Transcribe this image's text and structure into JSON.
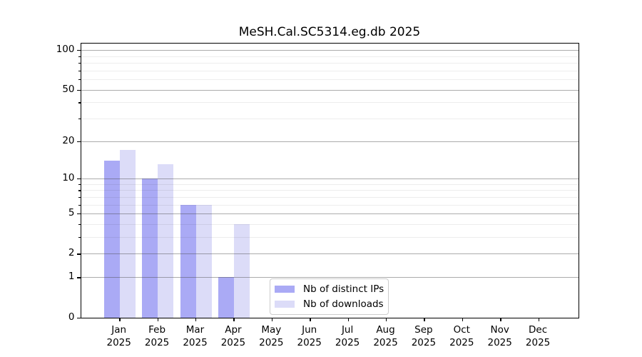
{
  "chart_data": {
    "type": "bar",
    "title": "MeSH.Cal.SC5314.eg.db 2025",
    "year_label": "2025",
    "categories": [
      "Jan",
      "Feb",
      "Mar",
      "Apr",
      "May",
      "Jun",
      "Jul",
      "Aug",
      "Sep",
      "Oct",
      "Nov",
      "Dec"
    ],
    "series": [
      {
        "name": "Nb of distinct IPs",
        "color": "#aaaaf5",
        "values": [
          14,
          10,
          6,
          1,
          0,
          0,
          0,
          0,
          0,
          0,
          0,
          0
        ]
      },
      {
        "name": "Nb of downloads",
        "color": "#dcdcf8",
        "values": [
          17,
          13,
          6,
          4,
          0,
          0,
          0,
          0,
          0,
          0,
          0,
          0
        ]
      }
    ],
    "yscale": "log1p",
    "ylim": [
      0,
      113
    ],
    "y_major_ticks": [
      0,
      1,
      2,
      5,
      10,
      20,
      50,
      100
    ],
    "y_minor_ticks": [
      3,
      4,
      6,
      7,
      8,
      9,
      30,
      40,
      60,
      70,
      80,
      90
    ],
    "xlabel": "",
    "ylabel": "",
    "grid": "on",
    "legend_position": "lower-center"
  }
}
